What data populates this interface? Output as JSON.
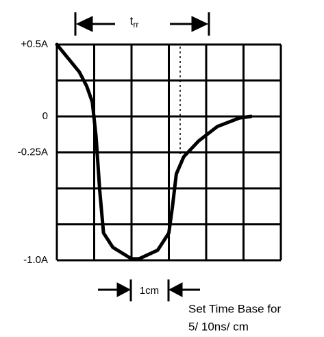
{
  "chart_data": {
    "type": "line",
    "annotations": {
      "top": {
        "text": "t",
        "subscript": "rr"
      },
      "bottom": "1cm",
      "note": [
        "Set Time Base for",
        "5/ 10ns/ cm"
      ]
    },
    "x": [
      0,
      0.3,
      0.6,
      0.8,
      0.95,
      1.05,
      1.15,
      1.25,
      1.5,
      2.0,
      2.2,
      2.7,
      3.0,
      3.1,
      3.2,
      3.4,
      3.8,
      4.3,
      4.9,
      5.2
    ],
    "series": [
      {
        "color": "#000000",
        "values": [
          0.5,
          0.405,
          0.31,
          0.21,
          0.1,
          -0.14,
          -0.52,
          -0.81,
          -0.91,
          -0.99,
          -0.99,
          -0.93,
          -0.81,
          -0.62,
          -0.4,
          -0.28,
          -0.17,
          -0.07,
          -0.01,
          0
        ]
      }
    ],
    "xlim": [
      0,
      6
    ],
    "ylim": [
      -1,
      0.5
    ],
    "yticks": [
      {
        "value": 0.5,
        "label": "+0.5A"
      },
      0,
      {
        "value": -0.25,
        "label": "-0.25A"
      },
      {
        "value": -1,
        "label": "-1.0A"
      }
    ]
  }
}
